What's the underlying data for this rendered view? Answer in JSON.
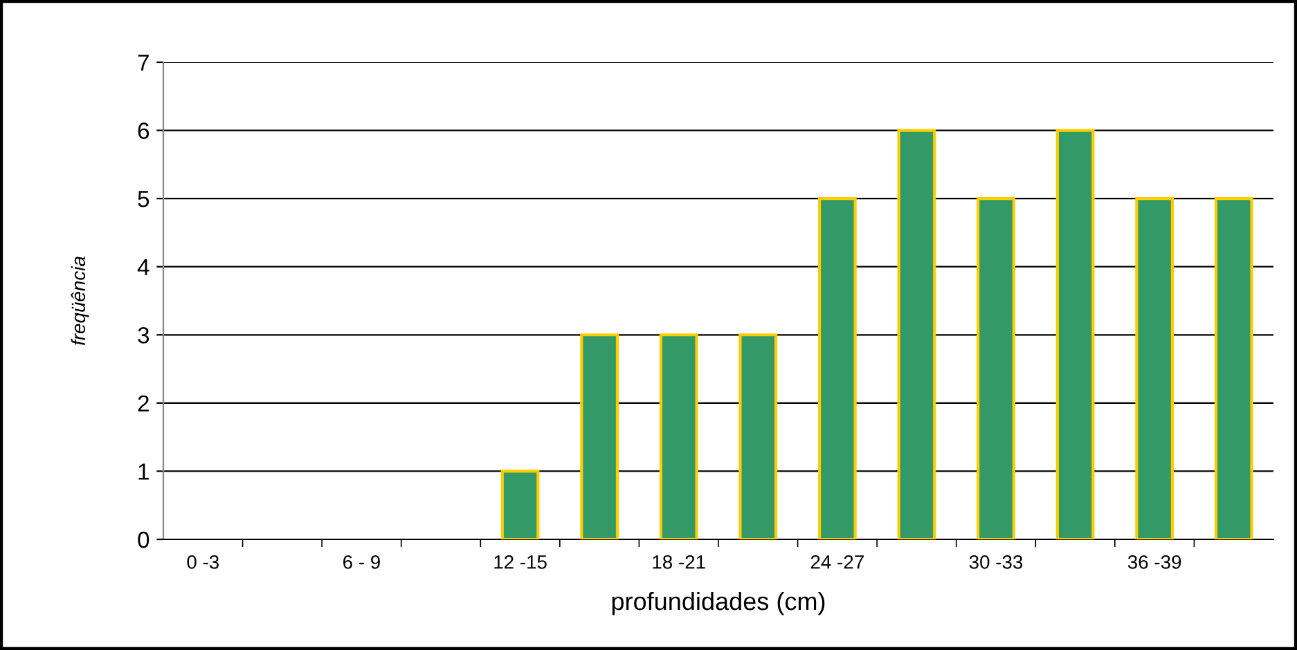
{
  "chart_data": {
    "type": "bar",
    "xlabel": "profundidades (cm)",
    "ylabel": "freqüência",
    "categories": [
      "0 -3",
      null,
      "6 - 9",
      null,
      "12 -15",
      null,
      "18 -21",
      null,
      "24 -27",
      null,
      "30 -33",
      null,
      "36 -39",
      null
    ],
    "values": [
      0,
      0,
      0,
      0,
      1,
      3,
      3,
      3,
      5,
      6,
      5,
      6,
      5,
      5
    ],
    "color": "#339966",
    "ylim": [
      0,
      7
    ],
    "yticks": [
      0,
      1,
      2,
      3,
      4,
      5,
      6,
      7
    ],
    "grid": "y"
  }
}
